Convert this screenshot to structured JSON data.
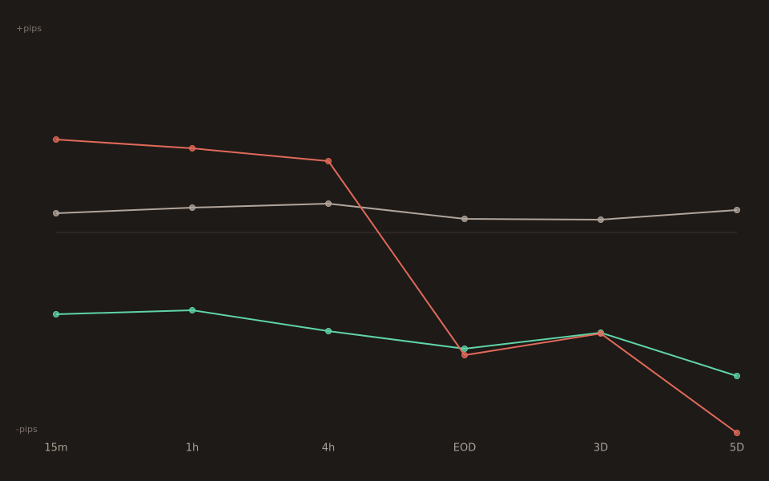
{
  "chart_data": {
    "type": "line",
    "ylabel_top": "+pips",
    "ylabel_bottom": "-pips",
    "categories": [
      "15m",
      "1h",
      "4h",
      "EOD",
      "3D",
      "5D"
    ],
    "ylim": [
      -100,
      100
    ],
    "series": [
      {
        "color": "#b0a59c",
        "values": [
          9.6,
          12.4,
          14.4,
          6.8,
          6.4,
          11.2
        ]
      },
      {
        "color": "#5fd4a8",
        "values": [
          -40.8,
          -38.8,
          -49.2,
          -58,
          -50,
          -71.6
        ]
      },
      {
        "color": "#e06a5a",
        "values": [
          46.4,
          42,
          35.6,
          -61.2,
          -50.4,
          -100
        ]
      }
    ]
  }
}
